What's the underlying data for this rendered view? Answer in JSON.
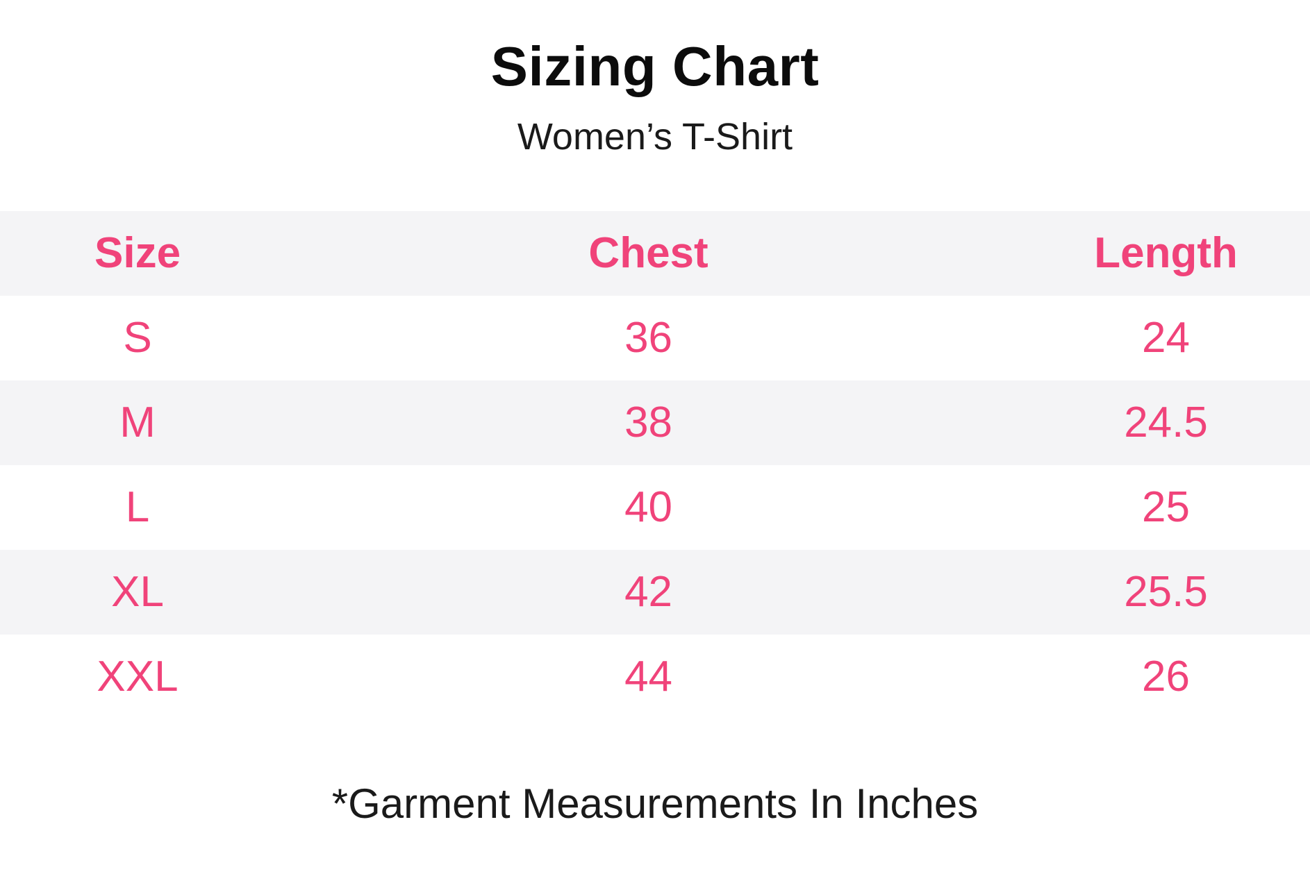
{
  "title": "Sizing Chart",
  "subtitle": "Women’s T-Shirt",
  "footnote": "*Garment Measurements In Inches",
  "colors": {
    "accent_pink": "#F0437A",
    "stripe_gray": "#F4F4F6",
    "text_black": "#0C0C0C",
    "background": "#FFFFFF"
  },
  "chart_data": {
    "type": "table",
    "title": "Sizing Chart",
    "subtitle": "Women’s T-Shirt",
    "columns": [
      "Size",
      "Chest",
      "Length"
    ],
    "rows": [
      [
        "S",
        "36",
        "24"
      ],
      [
        "M",
        "38",
        "24.5"
      ],
      [
        "L",
        "40",
        "25"
      ],
      [
        "XL",
        "42",
        "25.5"
      ],
      [
        "XXL",
        "44",
        "26"
      ]
    ],
    "units": "inches",
    "footnote": "*Garment Measurements In Inches",
    "layout": "alternating row stripes, header row gray, all table text centered"
  }
}
